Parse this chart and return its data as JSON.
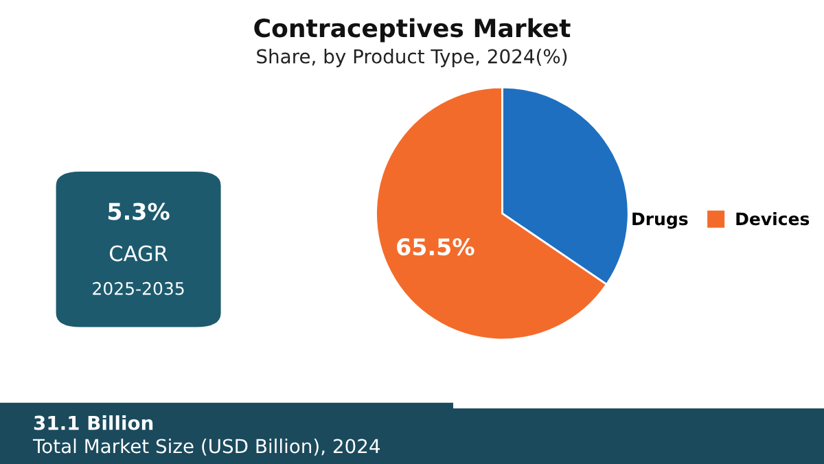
{
  "chart_data": {
    "type": "pie",
    "title": "Contraceptives Market",
    "subtitle": "Share, by Product Type, 2024(%)",
    "categories": [
      "Drugs",
      "Devices"
    ],
    "values": [
      34.5,
      65.5
    ],
    "colors": [
      "#1f6fc0",
      "#f36b2b"
    ],
    "value_labels": [
      null,
      "65.5%"
    ],
    "legend": "right",
    "annotations": [
      "5.3%",
      "CAGR",
      "2025-2035",
      "31.1 Billion",
      "Total Market Size (USD Billion), 2024"
    ]
  }
}
